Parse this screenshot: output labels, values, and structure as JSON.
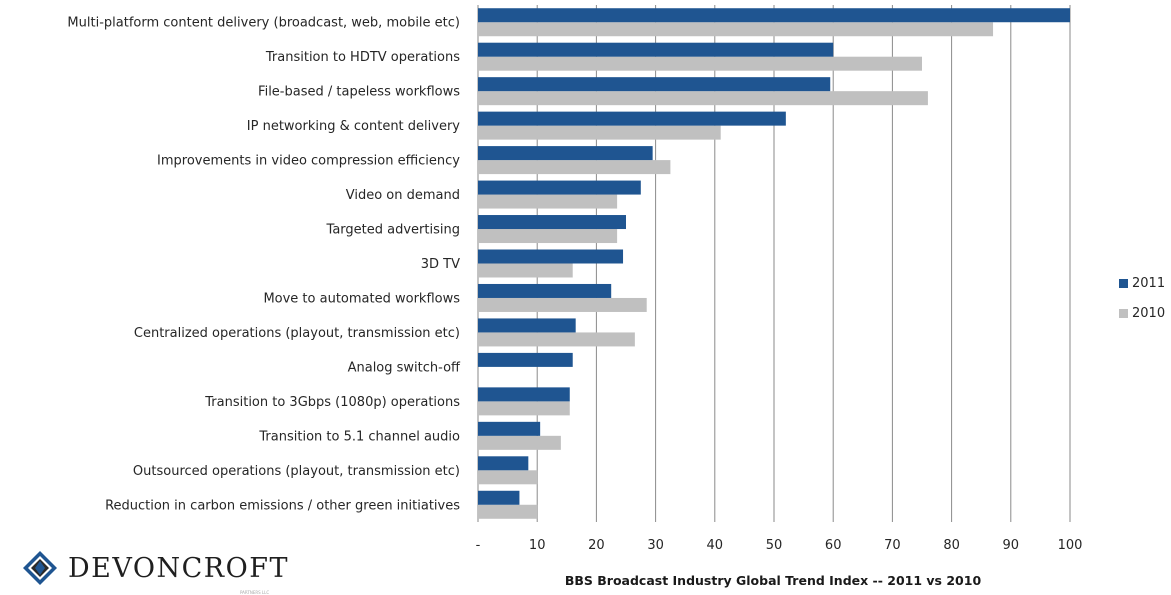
{
  "chart_data": {
    "type": "bar",
    "orientation": "horizontal",
    "title": "BBS Broadcast  Industry Global Trend Index  -- 2011 vs 2010",
    "categories": [
      "Multi-platform content delivery (broadcast, web, mobile etc)",
      "Transition to HDTV operations",
      "File-based  / tapeless workflows",
      "IP networking & content delivery",
      "Improvements in video compression efficiency",
      "Video on demand",
      "Targeted advertising",
      "3D TV",
      "Move to automated  workflows",
      "Centralized operations (playout, transmission  etc)",
      "Analog switch-off",
      "Transition to 3Gbps (1080p) operations",
      "Transition to 5.1 channel audio",
      "Outsourced operations (playout, transmission  etc)",
      "Reduction in carbon emissions / other green initiatives"
    ],
    "series": [
      {
        "name": "2011",
        "color": "#1F5591",
        "values": [
          100,
          60,
          59.5,
          52,
          29.5,
          27.5,
          25,
          24.5,
          22.5,
          16.5,
          16,
          15.5,
          10.5,
          8.5,
          7
        ]
      },
      {
        "name": "2010",
        "color": "#C0C0C0",
        "values": [
          87,
          75,
          76,
          41,
          32.5,
          23.5,
          23.5,
          16,
          28.5,
          26.5,
          0,
          15.5,
          14,
          10,
          10
        ]
      }
    ],
    "xlim": [
      0,
      100
    ],
    "xticks": [
      "-",
      "10",
      "20",
      "30",
      "40",
      "50",
      "60",
      "70",
      "80",
      "90",
      "100"
    ],
    "grid": true,
    "legend_position": "right"
  },
  "logo": {
    "text": "DEVONCROFT",
    "subtext": "PARTNERS LLC"
  }
}
